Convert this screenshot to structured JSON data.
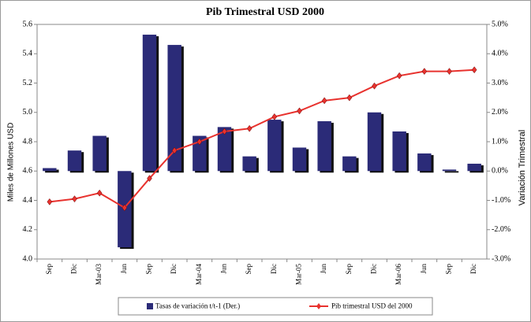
{
  "chart_data": {
    "type": "bar_line",
    "title": "Pib Trimestral USD 2000",
    "y_label": "Miles de Millones USD",
    "y2_label": "Variación Trimestral",
    "categories": [
      "Sep",
      "Dic",
      "Mar-03",
      "Jun",
      "Sep",
      "Dic",
      "Mar-04",
      "Jun",
      "Sep",
      "Dic",
      "Mar-05",
      "Jun",
      "Sep",
      "Dic",
      "Mar-06",
      "Jun",
      "Sep",
      "Dic"
    ],
    "ylim": [
      4.0,
      5.6
    ],
    "yticks": [
      {
        "value": 4,
        "label": "4.0"
      },
      4.2,
      4.4,
      4.6,
      4.8,
      {
        "value": 5,
        "label": "5.0"
      },
      5.2,
      5.4,
      5.6
    ],
    "y2lim": [
      -3,
      5
    ],
    "y2ticks": [
      {
        "value": -3,
        "label": "-3.0%"
      },
      {
        "value": -2,
        "label": "-2.0%"
      },
      {
        "value": -1,
        "label": "-1.0%"
      },
      {
        "value": 0,
        "label": "0.0%"
      },
      {
        "value": 1,
        "label": "1.0%"
      },
      {
        "value": 2,
        "label": "2.0%"
      },
      {
        "value": 3,
        "label": "3.0%"
      },
      {
        "value": 4,
        "label": "4.0%"
      },
      {
        "value": 5,
        "label": "5.0%"
      }
    ],
    "legend": "bottom",
    "series": [
      {
        "name": "Tasas de variación t/t-1 (Der.)",
        "kind": "bar",
        "axis": "y2",
        "color": "#2b2b78",
        "values": [
          0.1,
          0.7,
          1.2,
          -2.6,
          4.65,
          4.3,
          1.2,
          1.5,
          0.5,
          1.75,
          0.8,
          1.7,
          0.5,
          2.0,
          1.35,
          0.6,
          0.05,
          0.25
        ]
      },
      {
        "name": "Pib trimestral USD del 2000",
        "kind": "line",
        "axis": "y",
        "color": "#e8322e",
        "values": [
          4.39,
          4.41,
          4.45,
          4.35,
          4.55,
          4.74,
          4.8,
          4.87,
          4.89,
          4.97,
          5.01,
          5.08,
          5.1,
          5.18,
          5.25,
          5.28,
          5.28,
          5.29
        ]
      }
    ]
  }
}
